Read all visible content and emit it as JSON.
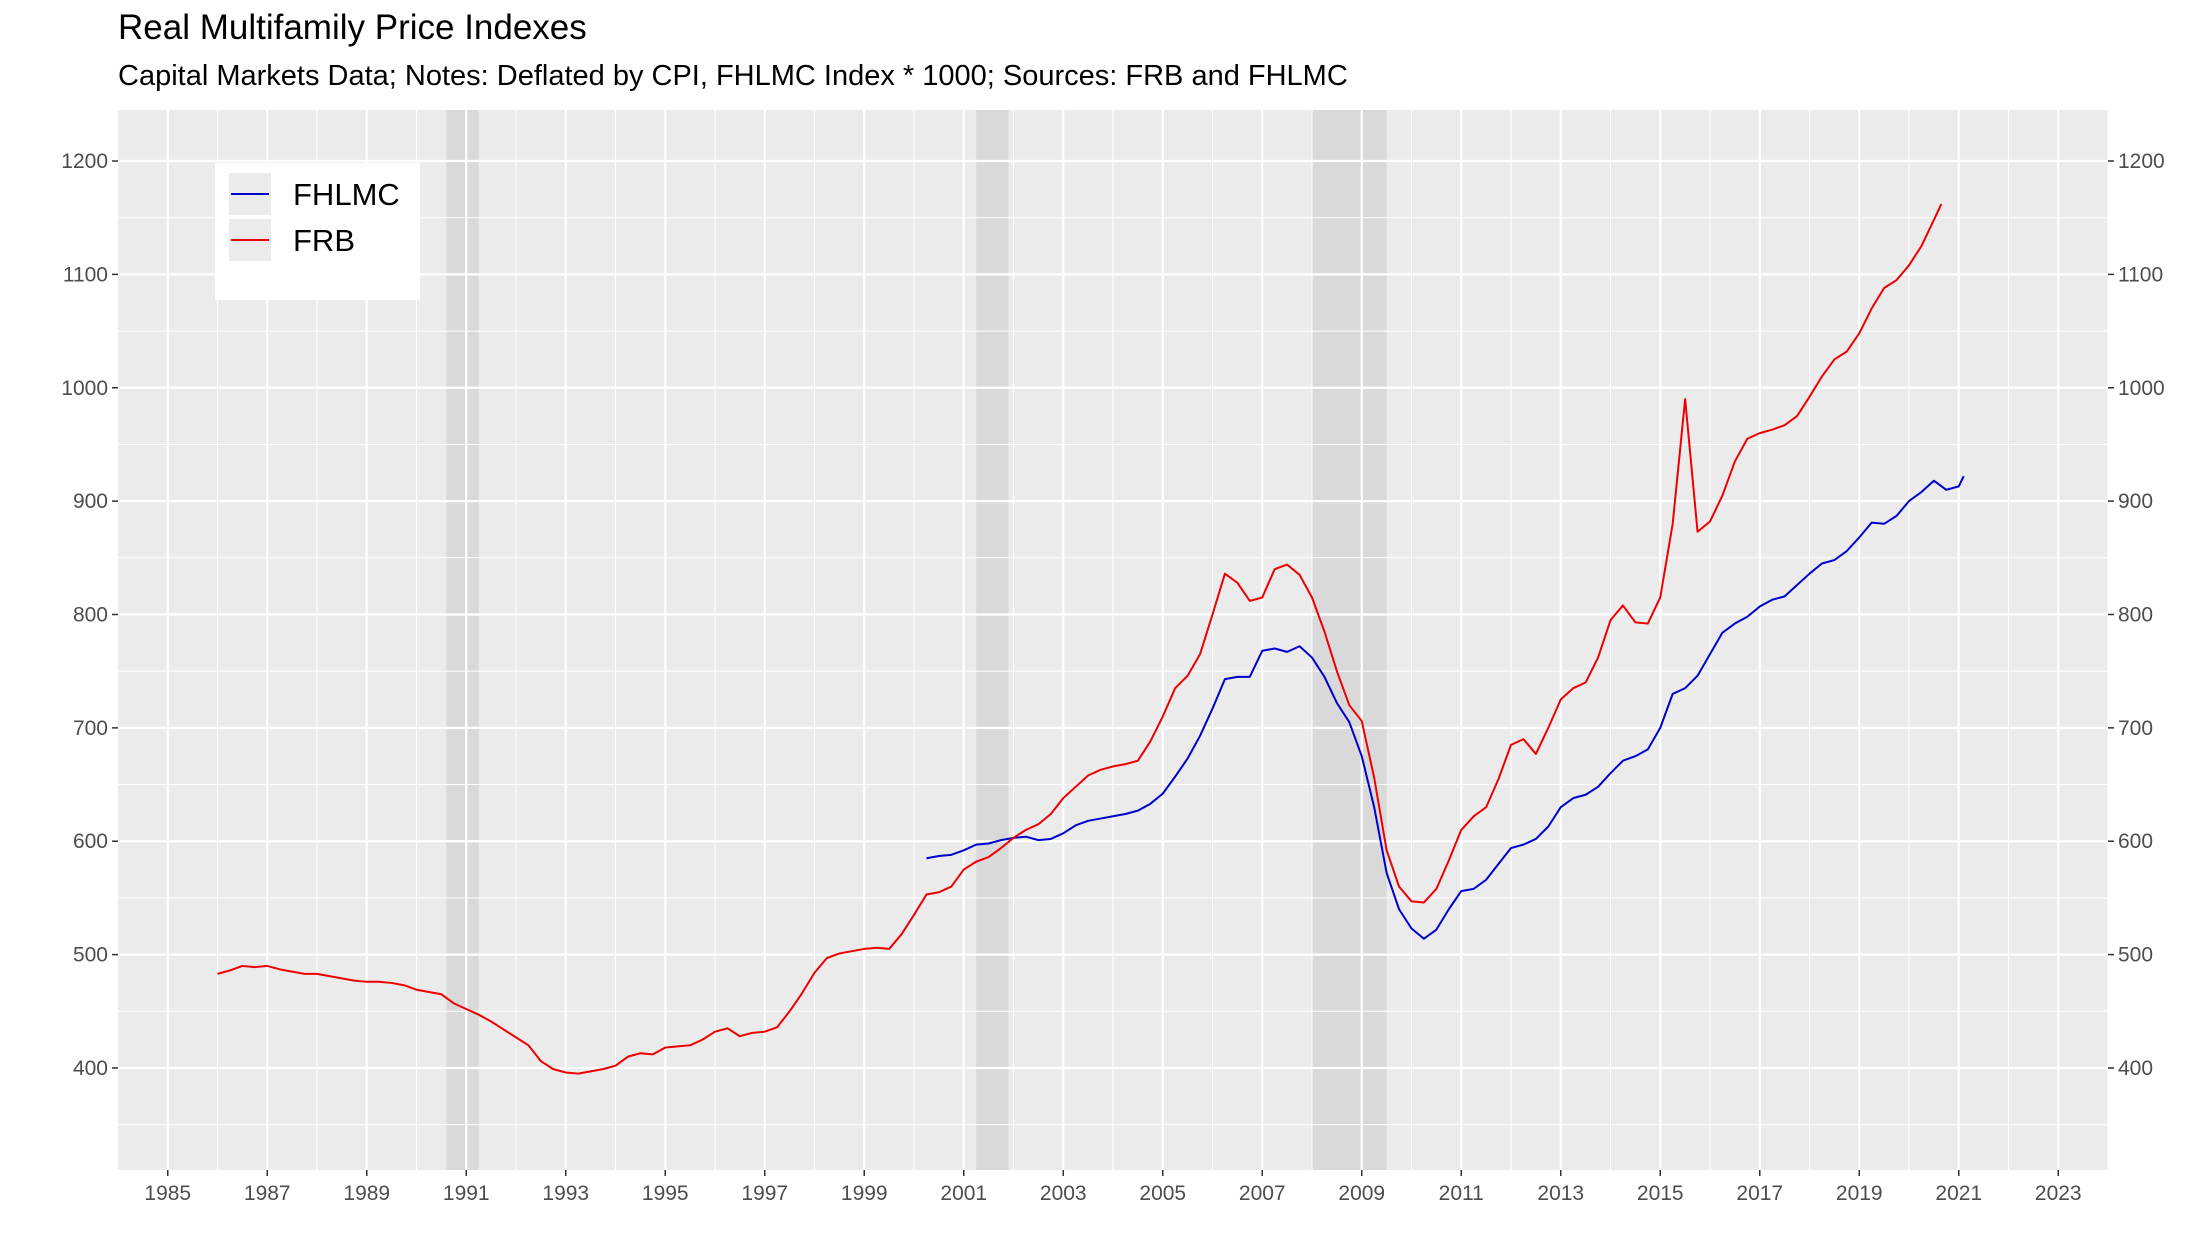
{
  "chart_data": {
    "type": "line",
    "title": "Real Multifamily Price Indexes",
    "subtitle": "Capital Markets Data; Notes: Deflated by CPI, FHLMC Index * 1000; Sources: FRB and FHLMC",
    "xlabel": "",
    "ylabel": "",
    "xlim": [
      1984.0,
      2024.0
    ],
    "ylim": [
      310,
      1245
    ],
    "x_ticks": [
      "1985",
      "1987",
      "1989",
      "1991",
      "1993",
      "1995",
      "1997",
      "1999",
      "2001",
      "2003",
      "2005",
      "2007",
      "2009",
      "2011",
      "2013",
      "2015",
      "2017",
      "2019",
      "2021",
      "2023"
    ],
    "y_ticks": [
      "400",
      "500",
      "600",
      "700",
      "800",
      "900",
      "1000",
      "1100",
      "1200"
    ],
    "grid": true,
    "secondary_y_axis": true,
    "legend_position": "top-left",
    "recessions": [
      {
        "start": 1990.6,
        "end": 1991.25
      },
      {
        "start": 2001.25,
        "end": 2001.9
      },
      {
        "start": 2008.0,
        "end": 2009.5
      }
    ],
    "series": [
      {
        "name": "FHLMC",
        "color": "#0000CC",
        "points": [
          [
            2000.25,
            585
          ],
          [
            2000.5,
            587
          ],
          [
            2000.75,
            588
          ],
          [
            2001.0,
            592
          ],
          [
            2001.25,
            597
          ],
          [
            2001.5,
            598
          ],
          [
            2001.75,
            601
          ],
          [
            2002.0,
            603
          ],
          [
            2002.25,
            604
          ],
          [
            2002.5,
            601
          ],
          [
            2002.75,
            602
          ],
          [
            2003.0,
            607
          ],
          [
            2003.25,
            614
          ],
          [
            2003.5,
            618
          ],
          [
            2003.75,
            620
          ],
          [
            2004.0,
            622
          ],
          [
            2004.25,
            624
          ],
          [
            2004.5,
            627
          ],
          [
            2004.75,
            633
          ],
          [
            2005.0,
            642
          ],
          [
            2005.25,
            657
          ],
          [
            2005.5,
            673
          ],
          [
            2005.75,
            693
          ],
          [
            2006.0,
            717
          ],
          [
            2006.25,
            743
          ],
          [
            2006.5,
            745
          ],
          [
            2006.75,
            745
          ],
          [
            2007.0,
            768
          ],
          [
            2007.25,
            770
          ],
          [
            2007.5,
            767
          ],
          [
            2007.75,
            772
          ],
          [
            2008.0,
            762
          ],
          [
            2008.25,
            745
          ],
          [
            2008.5,
            722
          ],
          [
            2008.75,
            705
          ],
          [
            2009.0,
            675
          ],
          [
            2009.25,
            630
          ],
          [
            2009.5,
            572
          ],
          [
            2009.75,
            540
          ],
          [
            2010.0,
            523
          ],
          [
            2010.25,
            514
          ],
          [
            2010.5,
            522
          ],
          [
            2010.75,
            540
          ],
          [
            2011.0,
            556
          ],
          [
            2011.25,
            558
          ],
          [
            2011.5,
            566
          ],
          [
            2011.75,
            580
          ],
          [
            2012.0,
            594
          ],
          [
            2012.25,
            597
          ],
          [
            2012.5,
            602
          ],
          [
            2012.75,
            613
          ],
          [
            2013.0,
            630
          ],
          [
            2013.25,
            638
          ],
          [
            2013.5,
            641
          ],
          [
            2013.75,
            648
          ],
          [
            2014.0,
            660
          ],
          [
            2014.25,
            671
          ],
          [
            2014.5,
            675
          ],
          [
            2014.75,
            681
          ],
          [
            2015.0,
            700
          ],
          [
            2015.25,
            730
          ],
          [
            2015.5,
            735
          ],
          [
            2015.75,
            746
          ],
          [
            2016.0,
            765
          ],
          [
            2016.25,
            784
          ],
          [
            2016.5,
            792
          ],
          [
            2016.75,
            798
          ],
          [
            2017.0,
            807
          ],
          [
            2017.25,
            813
          ],
          [
            2017.5,
            816
          ],
          [
            2017.75,
            826
          ],
          [
            2018.0,
            836
          ],
          [
            2018.25,
            845
          ],
          [
            2018.5,
            848
          ],
          [
            2018.75,
            856
          ],
          [
            2019.0,
            868
          ],
          [
            2019.25,
            881
          ],
          [
            2019.5,
            880
          ],
          [
            2019.75,
            887
          ],
          [
            2020.0,
            900
          ],
          [
            2020.25,
            908
          ],
          [
            2020.5,
            918
          ],
          [
            2020.75,
            910
          ],
          [
            2021.0,
            913
          ],
          [
            2021.1,
            922
          ]
        ]
      },
      {
        "name": "FRB",
        "color": "#EE0000",
        "points": [
          [
            1986.0,
            483
          ],
          [
            1986.25,
            486
          ],
          [
            1986.5,
            490
          ],
          [
            1986.75,
            489
          ],
          [
            1987.0,
            490
          ],
          [
            1987.25,
            487
          ],
          [
            1987.5,
            485
          ],
          [
            1987.75,
            483
          ],
          [
            1988.0,
            483
          ],
          [
            1988.25,
            481
          ],
          [
            1988.5,
            479
          ],
          [
            1988.75,
            477
          ],
          [
            1989.0,
            476
          ],
          [
            1989.25,
            476
          ],
          [
            1989.5,
            475
          ],
          [
            1989.75,
            473
          ],
          [
            1990.0,
            469
          ],
          [
            1990.25,
            467
          ],
          [
            1990.5,
            465
          ],
          [
            1990.75,
            457
          ],
          [
            1991.0,
            452
          ],
          [
            1991.25,
            447
          ],
          [
            1991.5,
            441
          ],
          [
            1991.75,
            434
          ],
          [
            1992.0,
            427
          ],
          [
            1992.25,
            420
          ],
          [
            1992.5,
            406
          ],
          [
            1992.75,
            399
          ],
          [
            1993.0,
            396
          ],
          [
            1993.25,
            395
          ],
          [
            1993.5,
            397
          ],
          [
            1993.75,
            399
          ],
          [
            1994.0,
            402
          ],
          [
            1994.25,
            410
          ],
          [
            1994.5,
            413
          ],
          [
            1994.75,
            412
          ],
          [
            1995.0,
            418
          ],
          [
            1995.25,
            419
          ],
          [
            1995.5,
            420
          ],
          [
            1995.75,
            425
          ],
          [
            1996.0,
            432
          ],
          [
            1996.25,
            435
          ],
          [
            1996.5,
            428
          ],
          [
            1996.75,
            431
          ],
          [
            1997.0,
            432
          ],
          [
            1997.25,
            436
          ],
          [
            1997.5,
            450
          ],
          [
            1997.75,
            466
          ],
          [
            1998.0,
            484
          ],
          [
            1998.25,
            497
          ],
          [
            1998.5,
            501
          ],
          [
            1998.75,
            503
          ],
          [
            1999.0,
            505
          ],
          [
            1999.25,
            506
          ],
          [
            1999.5,
            505
          ],
          [
            1999.75,
            518
          ],
          [
            2000.0,
            535
          ],
          [
            2000.25,
            553
          ],
          [
            2000.5,
            555
          ],
          [
            2000.75,
            560
          ],
          [
            2001.0,
            575
          ],
          [
            2001.25,
            582
          ],
          [
            2001.5,
            586
          ],
          [
            2001.75,
            594
          ],
          [
            2002.0,
            603
          ],
          [
            2002.25,
            610
          ],
          [
            2002.5,
            615
          ],
          [
            2002.75,
            624
          ],
          [
            2003.0,
            638
          ],
          [
            2003.25,
            648
          ],
          [
            2003.5,
            658
          ],
          [
            2003.75,
            663
          ],
          [
            2004.0,
            666
          ],
          [
            2004.25,
            668
          ],
          [
            2004.5,
            671
          ],
          [
            2004.75,
            688
          ],
          [
            2005.0,
            710
          ],
          [
            2005.25,
            735
          ],
          [
            2005.5,
            746
          ],
          [
            2005.75,
            765
          ],
          [
            2006.0,
            800
          ],
          [
            2006.25,
            836
          ],
          [
            2006.5,
            828
          ],
          [
            2006.75,
            812
          ],
          [
            2007.0,
            815
          ],
          [
            2007.25,
            840
          ],
          [
            2007.5,
            844
          ],
          [
            2007.75,
            835
          ],
          [
            2008.0,
            815
          ],
          [
            2008.25,
            785
          ],
          [
            2008.5,
            750
          ],
          [
            2008.75,
            720
          ],
          [
            2009.0,
            706
          ],
          [
            2009.25,
            656
          ],
          [
            2009.5,
            592
          ],
          [
            2009.75,
            560
          ],
          [
            2010.0,
            547
          ],
          [
            2010.25,
            546
          ],
          [
            2010.5,
            558
          ],
          [
            2010.75,
            583
          ],
          [
            2011.0,
            610
          ],
          [
            2011.25,
            622
          ],
          [
            2011.5,
            630
          ],
          [
            2011.75,
            655
          ],
          [
            2012.0,
            685
          ],
          [
            2012.25,
            690
          ],
          [
            2012.5,
            677
          ],
          [
            2012.75,
            700
          ],
          [
            2013.0,
            725
          ],
          [
            2013.25,
            735
          ],
          [
            2013.5,
            740
          ],
          [
            2013.75,
            762
          ],
          [
            2014.0,
            795
          ],
          [
            2014.25,
            808
          ],
          [
            2014.5,
            793
          ],
          [
            2014.75,
            792
          ],
          [
            2015.0,
            815
          ],
          [
            2015.25,
            880
          ],
          [
            2015.5,
            990
          ],
          [
            2015.75,
            873
          ],
          [
            2016.0,
            882
          ],
          [
            2016.25,
            905
          ],
          [
            2016.5,
            935
          ],
          [
            2016.75,
            955
          ],
          [
            2017.0,
            960
          ],
          [
            2017.25,
            963
          ],
          [
            2017.5,
            967
          ],
          [
            2017.75,
            975
          ],
          [
            2018.0,
            992
          ],
          [
            2018.25,
            1010
          ],
          [
            2018.5,
            1025
          ],
          [
            2018.75,
            1032
          ],
          [
            2019.0,
            1048
          ],
          [
            2019.25,
            1070
          ],
          [
            2019.5,
            1088
          ],
          [
            2019.75,
            1095
          ],
          [
            2020.0,
            1108
          ],
          [
            2020.25,
            1125
          ],
          [
            2020.5,
            1148
          ],
          [
            2020.65,
            1162
          ]
        ]
      }
    ]
  },
  "colors": {
    "panel_background": "#EBEBEB",
    "grid_major": "#FFFFFF",
    "recession_band": "#D9D9D9",
    "axis_text": "#4D4D4D"
  }
}
